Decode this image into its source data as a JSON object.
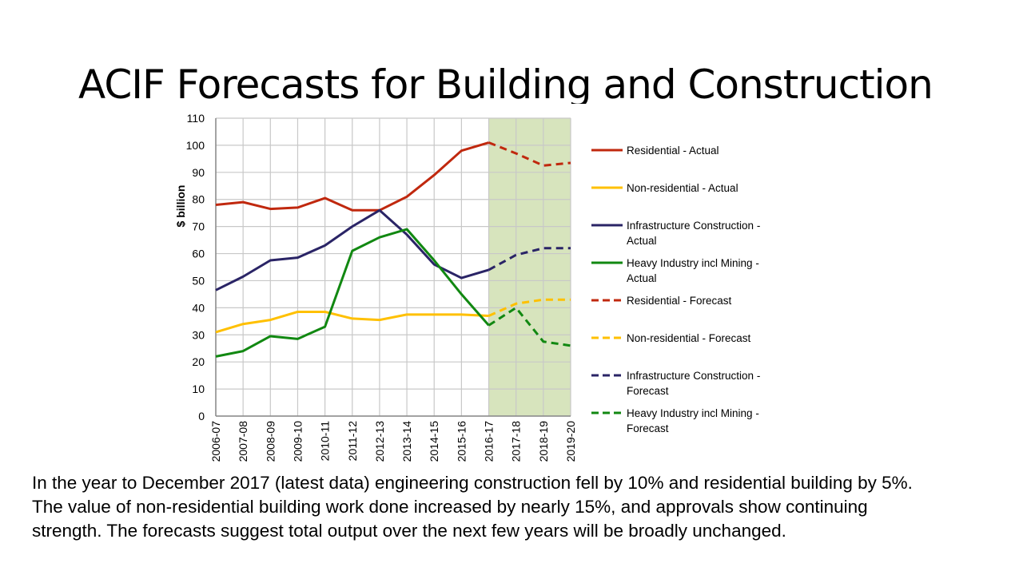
{
  "title": "ACIF Forecasts for Building and Construction",
  "caption": [
    "In the year to December 2017 (latest data) engineering construction fell by 10% and residential building by 5%.",
    "The value of non-residential building work done increased by nearly 15%, and approvals show continuing",
    "strength. The forecasts suggest total output over the next few years will be broadly unchanged."
  ],
  "chart_data": {
    "type": "line",
    "title": "",
    "xlabel": "",
    "ylabel": "$ billion",
    "ylim": [
      0,
      110
    ],
    "yticks": [
      0,
      10,
      20,
      30,
      40,
      50,
      60,
      70,
      80,
      90,
      100,
      110
    ],
    "grid": true,
    "legend_position": "right",
    "forecast_shading": {
      "from": "2016-17",
      "to": "2019-20",
      "color": "#d7e4bd"
    },
    "categories": [
      "2006-07",
      "2007-08",
      "2008-09",
      "2009-10",
      "2010-11",
      "2011-12",
      "2012-13",
      "2013-14",
      "2014-15",
      "2015-16",
      "2016-17",
      "2017-18",
      "2018-19",
      "2019-20"
    ],
    "series": [
      {
        "name": "Residential - Actual",
        "color": "#c0280e",
        "style": "solid",
        "values": [
          78,
          79,
          76.5,
          77,
          80.5,
          76,
          76,
          81,
          89,
          98,
          101,
          null,
          null,
          null
        ]
      },
      {
        "name": "Non-residential - Actual",
        "color": "#ffc000",
        "style": "solid",
        "values": [
          31,
          34,
          35.5,
          38.5,
          38.5,
          36,
          35.5,
          37.5,
          37.5,
          37.5,
          37,
          null,
          null,
          null
        ]
      },
      {
        "name": "Infrastructure Construction - Actual",
        "color": "#2a2466",
        "style": "solid",
        "values": [
          46.5,
          51.5,
          57.5,
          58.5,
          63,
          70,
          76,
          67,
          56,
          51,
          54,
          null,
          null,
          null
        ]
      },
      {
        "name": "Heavy Industry incl Mining - Actual",
        "color": "#118811",
        "style": "solid",
        "values": [
          22,
          24,
          29.5,
          28.5,
          33,
          61,
          66,
          69,
          57.5,
          45,
          33.5,
          null,
          null,
          null
        ]
      },
      {
        "name": "Residential - Forecast",
        "color": "#c0280e",
        "style": "dashed",
        "values": [
          null,
          null,
          null,
          null,
          null,
          null,
          null,
          null,
          null,
          null,
          101,
          97,
          92.5,
          93.5
        ]
      },
      {
        "name": "Non-residential - Forecast",
        "color": "#ffc000",
        "style": "dashed",
        "values": [
          null,
          null,
          null,
          null,
          null,
          null,
          null,
          null,
          null,
          null,
          37,
          41.5,
          43,
          43
        ]
      },
      {
        "name": "Infrastructure Construction - Forecast",
        "color": "#2a2466",
        "style": "dashed",
        "values": [
          null,
          null,
          null,
          null,
          null,
          null,
          null,
          null,
          null,
          null,
          54,
          59.5,
          62,
          62
        ]
      },
      {
        "name": "Heavy Industry incl Mining - Forecast",
        "color": "#118811",
        "style": "dashed",
        "values": [
          null,
          null,
          null,
          null,
          null,
          null,
          null,
          null,
          null,
          null,
          33.5,
          40,
          27.5,
          26
        ]
      }
    ],
    "legend_lines": [
      [
        "Residential - Actual"
      ],
      [
        "Non-residential - Actual"
      ],
      [
        "Infrastructure Construction -",
        "Actual"
      ],
      [
        "Heavy Industry incl Mining -",
        "Actual"
      ],
      [
        "Residential - Forecast"
      ],
      [
        "Non-residential - Forecast"
      ],
      [
        "Infrastructure Construction -",
        "Forecast"
      ],
      [
        "Heavy Industry incl Mining -",
        "Forecast"
      ]
    ]
  }
}
